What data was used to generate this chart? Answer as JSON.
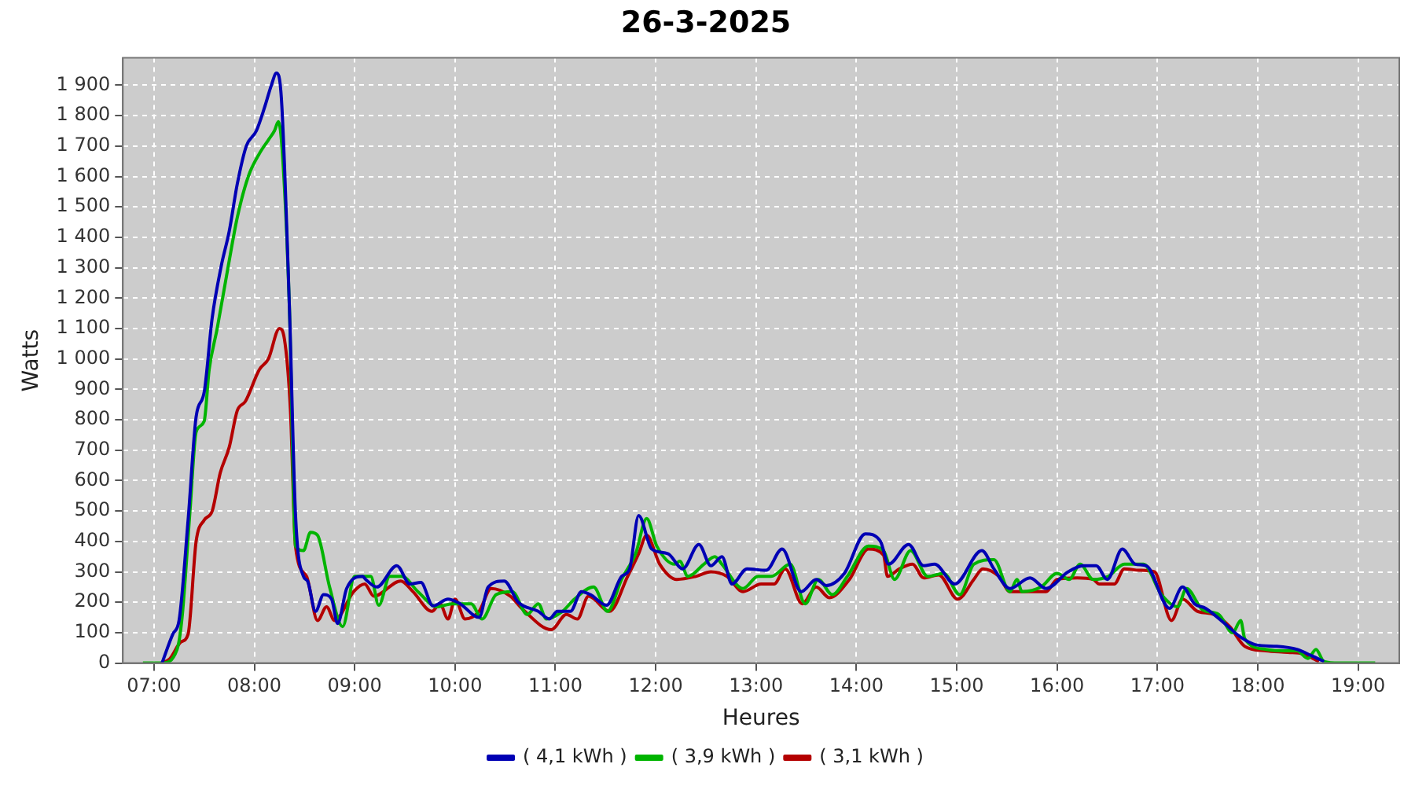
{
  "chart_data": {
    "type": "line",
    "title": "26-3-2025",
    "xlabel": "Heures",
    "ylabel": "Watts",
    "legend": "bottom",
    "grid": true,
    "marker": "none",
    "line_style": "solid",
    "xlim": [
      6.69,
      19.41
    ],
    "xticks": [
      {
        "value": 7,
        "label": "07:00"
      },
      {
        "value": 8,
        "label": "08:00"
      },
      {
        "value": 9,
        "label": "09:00"
      },
      {
        "value": 10,
        "label": "10:00"
      },
      {
        "value": 11,
        "label": "11:00"
      },
      {
        "value": 12,
        "label": "12:00"
      },
      {
        "value": 13,
        "label": "13:00"
      },
      {
        "value": 14,
        "label": "14:00"
      },
      {
        "value": 15,
        "label": "15:00"
      },
      {
        "value": 16,
        "label": "16:00"
      },
      {
        "value": 17,
        "label": "17:00"
      },
      {
        "value": 18,
        "label": "18:00"
      },
      {
        "value": 19,
        "label": "19:00"
      }
    ],
    "ylim": [
      0,
      1990
    ],
    "yticks": [
      0,
      100,
      200,
      300,
      400,
      500,
      600,
      700,
      800,
      900,
      {
        "value": 1000,
        "label": "1 000"
      },
      {
        "value": 1100,
        "label": "1 100"
      },
      {
        "value": 1200,
        "label": "1 200"
      },
      {
        "value": 1300,
        "label": "1 300"
      },
      {
        "value": 1400,
        "label": "1 400"
      },
      {
        "value": 1500,
        "label": "1 500"
      },
      {
        "value": 1600,
        "label": "1 600"
      },
      {
        "value": 1700,
        "label": "1 700"
      },
      {
        "value": 1800,
        "label": "1 800"
      },
      {
        "value": 1900,
        "label": "1 900"
      }
    ],
    "series": [
      {
        "name": "( 4,1 kWh )",
        "color": "#0000b4",
        "x": [
          7.08,
          7.19,
          7.25,
          7.34,
          7.42,
          7.5,
          7.58,
          7.67,
          7.75,
          7.83,
          7.92,
          8.02,
          8.1,
          8.17,
          8.22,
          8.27,
          8.35,
          8.41,
          8.49,
          8.53,
          8.61,
          8.69,
          8.77,
          8.83,
          8.92,
          9.08,
          9.11,
          9.22,
          9.42,
          9.55,
          9.66,
          9.78,
          9.93,
          10.05,
          10.24,
          10.33,
          10.49,
          10.63,
          10.83,
          10.94,
          11.02,
          11.15,
          11.26,
          11.35,
          11.51,
          11.66,
          11.74,
          11.83,
          11.96,
          12.12,
          12.27,
          12.43,
          12.55,
          12.66,
          12.76,
          12.91,
          13.1,
          13.26,
          13.45,
          13.6,
          13.7,
          13.88,
          14.09,
          14.24,
          14.32,
          14.52,
          14.67,
          14.78,
          14.98,
          15.25,
          15.37,
          15.53,
          15.73,
          15.89,
          16.11,
          16.26,
          16.39,
          16.5,
          16.65,
          16.78,
          16.89,
          17.12,
          17.25,
          17.37,
          17.48,
          17.67,
          17.83,
          17.98,
          18.19,
          18.39,
          18.53,
          18.66
        ],
        "values": [
          0,
          97,
          140,
          470,
          810,
          890,
          1135,
          1305,
          1420,
          1575,
          1700,
          1750,
          1825,
          1900,
          1940,
          1855,
          1165,
          490,
          285,
          270,
          170,
          225,
          210,
          130,
          245,
          285,
          275,
          250,
          320,
          260,
          265,
          188,
          210,
          195,
          150,
          250,
          270,
          200,
          170,
          145,
          170,
          170,
          235,
          225,
          190,
          285,
          310,
          485,
          375,
          360,
          310,
          390,
          320,
          350,
          260,
          310,
          305,
          375,
          235,
          275,
          255,
          295,
          425,
          400,
          325,
          390,
          320,
          325,
          260,
          370,
          310,
          245,
          280,
          245,
          300,
          320,
          320,
          275,
          375,
          325,
          320,
          180,
          250,
          195,
          180,
          130,
          85,
          60,
          55,
          45,
          25,
          5
        ]
      },
      {
        "name": "( 3,9 kWh )",
        "color": "#00b400",
        "x": [
          6.89,
          7.08,
          7.23,
          7.28,
          7.36,
          7.42,
          7.5,
          7.55,
          7.63,
          7.74,
          7.83,
          7.94,
          8.05,
          8.14,
          8.2,
          8.24,
          8.28,
          8.35,
          8.41,
          8.49,
          8.56,
          8.63,
          8.75,
          8.88,
          9.0,
          9.16,
          9.24,
          9.35,
          9.47,
          9.63,
          9.82,
          9.97,
          10.16,
          10.27,
          10.41,
          10.57,
          10.72,
          10.83,
          10.91,
          11.07,
          11.19,
          11.38,
          11.52,
          11.66,
          11.8,
          11.91,
          12.01,
          12.19,
          12.24,
          12.32,
          12.48,
          12.59,
          12.66,
          12.87,
          13.02,
          13.15,
          13.34,
          13.49,
          13.62,
          13.76,
          13.91,
          14.12,
          14.27,
          14.38,
          14.54,
          14.71,
          14.87,
          15.03,
          15.17,
          15.37,
          15.53,
          15.6,
          15.65,
          15.84,
          16.0,
          16.12,
          16.23,
          16.36,
          16.51,
          16.67,
          16.86,
          17.04,
          17.2,
          17.29,
          17.45,
          17.61,
          17.75,
          17.83,
          17.87,
          18.08,
          18.26,
          18.39,
          18.5,
          18.58,
          18.66,
          18.81,
          19.17
        ],
        "values": [
          0,
          0,
          45,
          150,
          505,
          760,
          795,
          965,
          1100,
          1305,
          1465,
          1600,
          1675,
          1720,
          1750,
          1780,
          1675,
          1165,
          385,
          370,
          430,
          420,
          250,
          120,
          285,
          285,
          190,
          285,
          285,
          235,
          185,
          195,
          195,
          145,
          225,
          235,
          160,
          195,
          145,
          170,
          210,
          250,
          170,
          275,
          360,
          475,
          385,
          325,
          335,
          285,
          325,
          350,
          325,
          245,
          285,
          285,
          325,
          195,
          275,
          225,
          285,
          385,
          370,
          275,
          370,
          285,
          295,
          225,
          325,
          340,
          235,
          275,
          235,
          250,
          295,
          275,
          325,
          275,
          285,
          325,
          325,
          225,
          185,
          245,
          175,
          160,
          100,
          140,
          80,
          45,
          40,
          40,
          15,
          45,
          5,
          0,
          0
        ]
      },
      {
        "name": "( 3,1 kWh )",
        "color": "#b40000",
        "x": [
          7.08,
          7.16,
          7.27,
          7.34,
          7.42,
          7.5,
          7.58,
          7.66,
          7.75,
          7.83,
          7.91,
          8.05,
          8.14,
          8.25,
          8.3,
          8.36,
          8.41,
          8.52,
          8.63,
          8.72,
          8.8,
          8.99,
          9.1,
          9.19,
          9.46,
          9.58,
          9.77,
          9.85,
          9.93,
          10.0,
          10.1,
          10.24,
          10.36,
          10.55,
          10.68,
          10.96,
          11.11,
          11.22,
          11.33,
          11.54,
          11.72,
          11.83,
          11.91,
          12.04,
          12.21,
          12.4,
          12.55,
          12.71,
          12.87,
          13.05,
          13.18,
          13.29,
          13.46,
          13.6,
          13.73,
          13.93,
          14.12,
          14.27,
          14.31,
          14.43,
          14.56,
          14.67,
          14.82,
          15.01,
          15.17,
          15.26,
          15.42,
          15.53,
          15.89,
          16.0,
          16.2,
          16.36,
          16.42,
          16.57,
          16.67,
          16.82,
          16.97,
          17.14,
          17.25,
          17.4,
          17.56,
          17.72,
          17.87,
          18.08,
          18.3,
          18.45,
          18.61
        ],
        "values": [
          0,
          15,
          70,
          95,
          400,
          470,
          500,
          625,
          710,
          830,
          860,
          965,
          1000,
          1100,
          1065,
          830,
          385,
          285,
          140,
          185,
          140,
          235,
          260,
          220,
          270,
          235,
          170,
          195,
          145,
          210,
          145,
          170,
          245,
          220,
          175,
          110,
          160,
          145,
          220,
          170,
          285,
          360,
          420,
          325,
          275,
          285,
          300,
          285,
          235,
          260,
          260,
          310,
          195,
          250,
          215,
          275,
          375,
          355,
          285,
          310,
          325,
          280,
          290,
          210,
          275,
          310,
          285,
          235,
          235,
          275,
          280,
          275,
          260,
          260,
          310,
          305,
          300,
          140,
          210,
          170,
          160,
          120,
          55,
          40,
          35,
          30,
          5
        ]
      }
    ]
  }
}
